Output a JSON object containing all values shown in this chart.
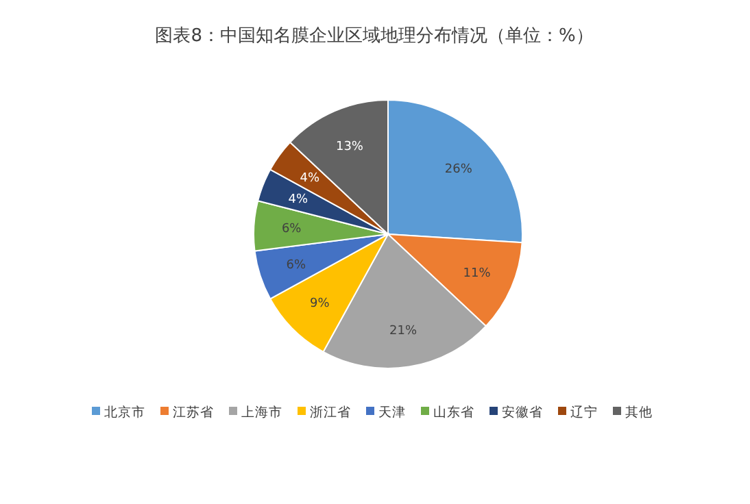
{
  "chart_data": {
    "type": "pie",
    "title": "图表8：中国知名膜企业区域地理分布情况（单位：%）",
    "categories": [
      "北京市",
      "江苏省",
      "上海市",
      "浙江省",
      "天津",
      "山东省",
      "安徽省",
      "辽宁",
      "其他"
    ],
    "values": [
      26,
      11,
      21,
      9,
      6,
      6,
      4,
      4,
      13
    ],
    "value_labels": [
      "26%",
      "11%",
      "21%",
      "9%",
      "6%",
      "6%",
      "4%",
      "4%",
      "13%"
    ],
    "colors": [
      "#5b9bd5",
      "#ed7d31",
      "#a5a5a5",
      "#ffc000",
      "#4472c4",
      "#70ad47",
      "#264478",
      "#9e480e",
      "#636363"
    ],
    "legend": "bottom"
  }
}
